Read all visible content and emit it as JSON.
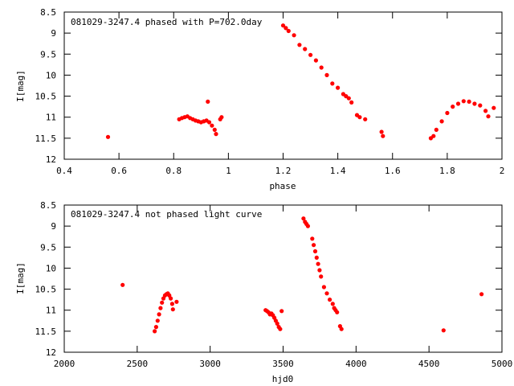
{
  "chart_data": [
    {
      "type": "scatter",
      "title": "081029-3247.4 phased with P=702.0day",
      "xlabel": "phase",
      "ylabel": "I[mag]",
      "xlim": [
        0.4,
        2.0
      ],
      "ylim": [
        12.0,
        8.5
      ],
      "y_inverted": true,
      "grid": false,
      "x_ticks": [
        "0.4",
        "0.6",
        "0.8",
        "1",
        "1.2",
        "1.4",
        "1.6",
        "1.8",
        "2"
      ],
      "y_ticks": [
        "8.5",
        "9",
        "9.5",
        "10",
        "10.5",
        "11",
        "11.5",
        "12"
      ],
      "marker_color": "#ff0000",
      "series": [
        {
          "points": [
            [
              0.56,
              11.47
            ],
            [
              0.82,
              11.05
            ],
            [
              0.83,
              11.02
            ],
            [
              0.84,
              11.0
            ],
            [
              0.85,
              10.98
            ],
            [
              0.86,
              11.02
            ],
            [
              0.87,
              11.05
            ],
            [
              0.88,
              11.08
            ],
            [
              0.89,
              11.1
            ],
            [
              0.9,
              11.12
            ],
            [
              0.91,
              11.1
            ],
            [
              0.92,
              11.08
            ],
            [
              0.93,
              11.12
            ],
            [
              0.94,
              11.2
            ],
            [
              0.95,
              11.3
            ],
            [
              0.955,
              11.4
            ],
            [
              0.925,
              10.63
            ],
            [
              0.975,
              11.0
            ],
            [
              0.97,
              11.05
            ],
            [
              1.2,
              8.82
            ],
            [
              1.21,
              8.88
            ],
            [
              1.22,
              8.95
            ],
            [
              1.24,
              9.05
            ],
            [
              1.26,
              9.28
            ],
            [
              1.28,
              9.38
            ],
            [
              1.3,
              9.52
            ],
            [
              1.32,
              9.65
            ],
            [
              1.34,
              9.82
            ],
            [
              1.36,
              10.0
            ],
            [
              1.38,
              10.2
            ],
            [
              1.4,
              10.3
            ],
            [
              1.42,
              10.45
            ],
            [
              1.43,
              10.5
            ],
            [
              1.44,
              10.55
            ],
            [
              1.45,
              10.65
            ],
            [
              1.47,
              10.95
            ],
            [
              1.48,
              11.0
            ],
            [
              1.5,
              11.05
            ],
            [
              1.56,
              11.35
            ],
            [
              1.565,
              11.45
            ],
            [
              1.74,
              11.5
            ],
            [
              1.75,
              11.45
            ],
            [
              1.76,
              11.3
            ],
            [
              1.78,
              11.1
            ],
            [
              1.8,
              10.9
            ],
            [
              1.82,
              10.75
            ],
            [
              1.84,
              10.68
            ],
            [
              1.86,
              10.62
            ],
            [
              1.88,
              10.63
            ],
            [
              1.9,
              10.68
            ],
            [
              1.92,
              10.72
            ],
            [
              1.94,
              10.85
            ],
            [
              1.95,
              10.98
            ],
            [
              1.97,
              10.78
            ]
          ]
        }
      ]
    },
    {
      "type": "scatter",
      "title": "081029-3247.4 not phased light curve",
      "xlabel": "hjd0",
      "ylabel": "I[mag]",
      "xlim": [
        2000,
        5000
      ],
      "ylim": [
        12.0,
        8.5
      ],
      "y_inverted": true,
      "grid": false,
      "x_ticks": [
        "2000",
        "2500",
        "3000",
        "3500",
        "4000",
        "4500",
        "5000"
      ],
      "y_ticks": [
        "8.5",
        "9",
        "9.5",
        "10",
        "10.5",
        "11",
        "11.5",
        "12"
      ],
      "marker_color": "#ff0000",
      "series": [
        {
          "points": [
            [
              2400,
              10.4
            ],
            [
              2620,
              11.5
            ],
            [
              2630,
              11.4
            ],
            [
              2640,
              11.25
            ],
            [
              2650,
              11.1
            ],
            [
              2660,
              10.95
            ],
            [
              2670,
              10.82
            ],
            [
              2680,
              10.72
            ],
            [
              2690,
              10.65
            ],
            [
              2700,
              10.62
            ],
            [
              2710,
              10.6
            ],
            [
              2720,
              10.65
            ],
            [
              2730,
              10.72
            ],
            [
              2740,
              10.85
            ],
            [
              2745,
              10.98
            ],
            [
              2770,
              10.8
            ],
            [
              3380,
              11.0
            ],
            [
              3390,
              11.02
            ],
            [
              3400,
              11.05
            ],
            [
              3410,
              11.1
            ],
            [
              3420,
              11.08
            ],
            [
              3430,
              11.12
            ],
            [
              3440,
              11.18
            ],
            [
              3450,
              11.25
            ],
            [
              3460,
              11.32
            ],
            [
              3470,
              11.4
            ],
            [
              3480,
              11.45
            ],
            [
              3490,
              11.02
            ],
            [
              3640,
              8.82
            ],
            [
              3650,
              8.9
            ],
            [
              3660,
              8.95
            ],
            [
              3670,
              9.0
            ],
            [
              3700,
              9.3
            ],
            [
              3710,
              9.45
            ],
            [
              3720,
              9.6
            ],
            [
              3730,
              9.75
            ],
            [
              3740,
              9.9
            ],
            [
              3750,
              10.05
            ],
            [
              3760,
              10.2
            ],
            [
              3780,
              10.45
            ],
            [
              3800,
              10.6
            ],
            [
              3820,
              10.75
            ],
            [
              3840,
              10.85
            ],
            [
              3850,
              10.95
            ],
            [
              3860,
              11.0
            ],
            [
              3870,
              11.05
            ],
            [
              3890,
              11.38
            ],
            [
              3900,
              11.45
            ],
            [
              4600,
              11.48
            ],
            [
              4860,
              10.62
            ]
          ]
        }
      ]
    }
  ]
}
